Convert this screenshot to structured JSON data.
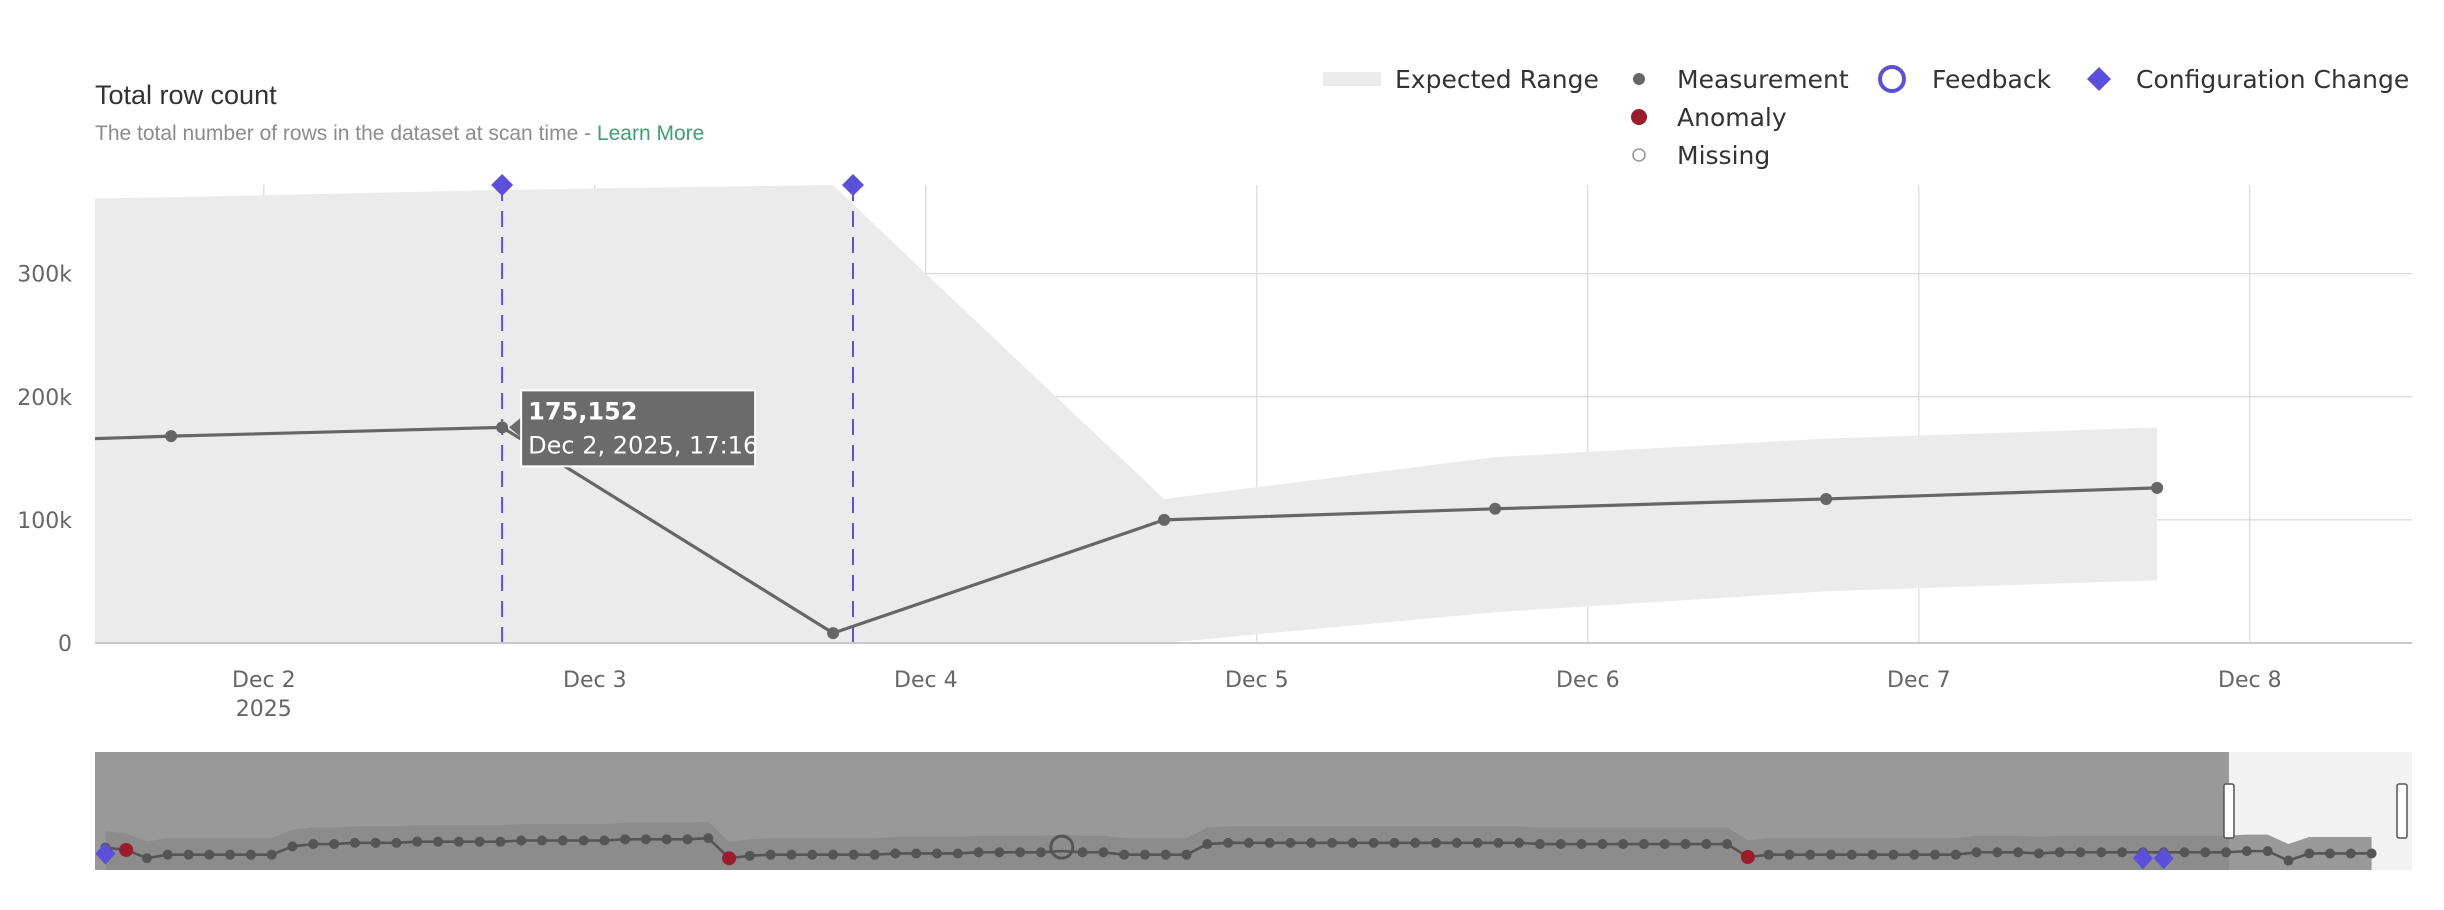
{
  "header": {
    "title": "Total row count",
    "subtitle": "The total number of rows in the dataset at scan time - ",
    "learn_more": "Learn More"
  },
  "legend": {
    "items": [
      {
        "label": "Expected Range",
        "icon": "range-swatch-icon"
      },
      {
        "label": "Measurement",
        "icon": "dot-icon"
      },
      {
        "label": "Feedback",
        "icon": "ring-icon"
      },
      {
        "label": "Configuration Change",
        "icon": "diamond-icon"
      },
      {
        "label": "Anomaly",
        "icon": "red-dot-icon"
      },
      {
        "label": "Missing",
        "icon": "hollow-dot-icon"
      }
    ]
  },
  "colors": {
    "range": "#ebebeb",
    "line": "#666666",
    "anomaly": "#9b1c2c",
    "config": "#5b4fdc",
    "grid": "#d9d9d9",
    "navigator_bg": "#999999",
    "navigator_range": "#8a8a8a",
    "tooltip_bg": "#6b6b6b"
  },
  "tooltip": {
    "value": "175,152",
    "time": "Dec 2, 2025, 17:16"
  },
  "chart_data": {
    "type": "line",
    "title": "Total row count",
    "y_ticks": [
      {
        "value": 0,
        "label": "0"
      },
      {
        "value": 100000,
        "label": "100k"
      },
      {
        "value": 200000,
        "label": "200k"
      },
      {
        "value": 300000,
        "label": "300k"
      }
    ],
    "x_ticks": [
      {
        "value": 2,
        "label": "Dec 2",
        "sublabel": "2025"
      },
      {
        "value": 3,
        "label": "Dec 3",
        "sublabel": ""
      },
      {
        "value": 4,
        "label": "Dec 4",
        "sublabel": ""
      },
      {
        "value": 5,
        "label": "Dec 5",
        "sublabel": ""
      },
      {
        "value": 6,
        "label": "Dec 6",
        "sublabel": ""
      },
      {
        "value": 7,
        "label": "Dec 7",
        "sublabel": ""
      },
      {
        "value": 8,
        "label": "Dec 8",
        "sublabel": ""
      }
    ],
    "xlim": [
      1.49,
      8.49
    ],
    "ylim": [
      0,
      372000
    ],
    "grid": true,
    "legend_position": "top-right",
    "series": [
      {
        "name": "Measurement",
        "x": [
          1.49,
          1.72,
          2.72,
          3.72,
          4.72,
          5.72,
          6.72,
          7.72
        ],
        "y": [
          166000,
          168000,
          175152,
          8000,
          100000,
          109000,
          117000,
          126000
        ]
      }
    ],
    "expected_range": {
      "x": [
        1.49,
        1.72,
        2.72,
        3.72,
        4.0,
        4.72,
        5.72,
        6.72,
        7.72
      ],
      "upper": [
        361000,
        362000,
        368000,
        372000,
        300000,
        117000,
        151000,
        166000,
        175000
      ],
      "lower": [
        0,
        0,
        0,
        0,
        0,
        0,
        25000,
        42000,
        51000
      ]
    },
    "config_changes": [
      2.72,
      3.78
    ]
  },
  "navigator": {
    "measurements": [
      0.19,
      0.17,
      0.1,
      0.13,
      0.13,
      0.13,
      0.13,
      0.13,
      0.13,
      0.2,
      0.22,
      0.22,
      0.23,
      0.23,
      0.23,
      0.24,
      0.24,
      0.24,
      0.24,
      0.24,
      0.25,
      0.25,
      0.25,
      0.25,
      0.25,
      0.26,
      0.26,
      0.26,
      0.26,
      0.27,
      0.1,
      0.12,
      0.13,
      0.13,
      0.13,
      0.13,
      0.13,
      0.13,
      0.14,
      0.14,
      0.14,
      0.14,
      0.15,
      0.15,
      0.15,
      0.15,
      0.16,
      0.15,
      0.15,
      0.13,
      0.13,
      0.13,
      0.13,
      0.22,
      0.23,
      0.23,
      0.23,
      0.23,
      0.23,
      0.23,
      0.23,
      0.23,
      0.23,
      0.23,
      0.23,
      0.23,
      0.23,
      0.23,
      0.23,
      0.22,
      0.22,
      0.22,
      0.22,
      0.22,
      0.22,
      0.22,
      0.22,
      0.22,
      0.22,
      0.11,
      0.13,
      0.13,
      0.13,
      0.13,
      0.13,
      0.13,
      0.13,
      0.13,
      0.13,
      0.13,
      0.15,
      0.15,
      0.15,
      0.14,
      0.15,
      0.15,
      0.15,
      0.15,
      0.15,
      0.15,
      0.15,
      0.15,
      0.15,
      0.16,
      0.16,
      0.08,
      0.14,
      0.14,
      0.14,
      0.14
    ],
    "anomaly_indices": [
      1,
      30,
      79
    ],
    "missing_indices": [
      46
    ],
    "config_indices": [
      0,
      98,
      99
    ],
    "window_start_fraction": 0.0,
    "window_end_fraction": 0.921
  }
}
